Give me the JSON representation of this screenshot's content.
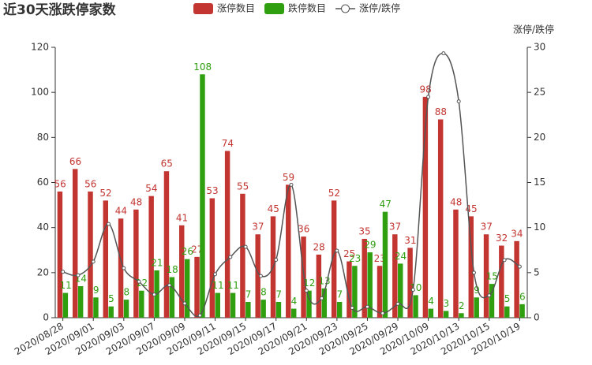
{
  "chart_data": {
    "type": "bar",
    "title": "近30天涨跌停家数",
    "categories": [
      "2020/08/28",
      null,
      "2020/09/01",
      null,
      "2020/09/03",
      null,
      "2020/09/07",
      null,
      "2020/09/09",
      null,
      "2020/09/11",
      null,
      "2020/09/15",
      null,
      "2020/09/17",
      null,
      "2020/09/21",
      null,
      "2020/09/23",
      null,
      "2020/09/25",
      null,
      "2020/09/29",
      null,
      "2020/10/09",
      null,
      "2020/10/13",
      null,
      "2020/10/15",
      null,
      "2020/10/19"
    ],
    "series": [
      {
        "name": "涨停数目",
        "color": "#c23531",
        "values": [
          56,
          66,
          56,
          52,
          44,
          48,
          54,
          65,
          41,
          27,
          53,
          74,
          55,
          37,
          45,
          59,
          36,
          28,
          52,
          25,
          35,
          23,
          37,
          31,
          98,
          88,
          48,
          45,
          37,
          32,
          34
        ]
      },
      {
        "name": "跌停数目",
        "color": "#2f9e0f",
        "values": [
          11,
          14,
          9,
          5,
          8,
          12,
          21,
          18,
          26,
          108,
          11,
          11,
          7,
          8,
          7,
          4,
          12,
          13,
          7,
          23,
          29,
          47,
          24,
          10,
          4,
          3,
          2,
          9,
          15,
          5,
          6
        ]
      },
      {
        "name": "涨停/跌停",
        "color": "#555555",
        "type": "line",
        "axis": "y2",
        "values": [
          5.09,
          4.71,
          6.22,
          10.4,
          5.5,
          4,
          2.57,
          3.61,
          1.58,
          0.25,
          4.82,
          6.73,
          7.86,
          4.63,
          6.43,
          14.75,
          3,
          2.15,
          7.43,
          1.09,
          1.21,
          0.49,
          1.54,
          3.1,
          24.5,
          29.33,
          24,
          5,
          2.47,
          6.4,
          5.67
        ]
      }
    ],
    "ylim": [
      0,
      120
    ],
    "yticks": [
      0,
      20,
      40,
      60,
      80,
      100,
      120
    ],
    "y2lim": [
      0,
      30
    ],
    "y2ticks": [
      0,
      5,
      10,
      15,
      20,
      25,
      30
    ],
    "y2label": "涨停/跌停"
  }
}
